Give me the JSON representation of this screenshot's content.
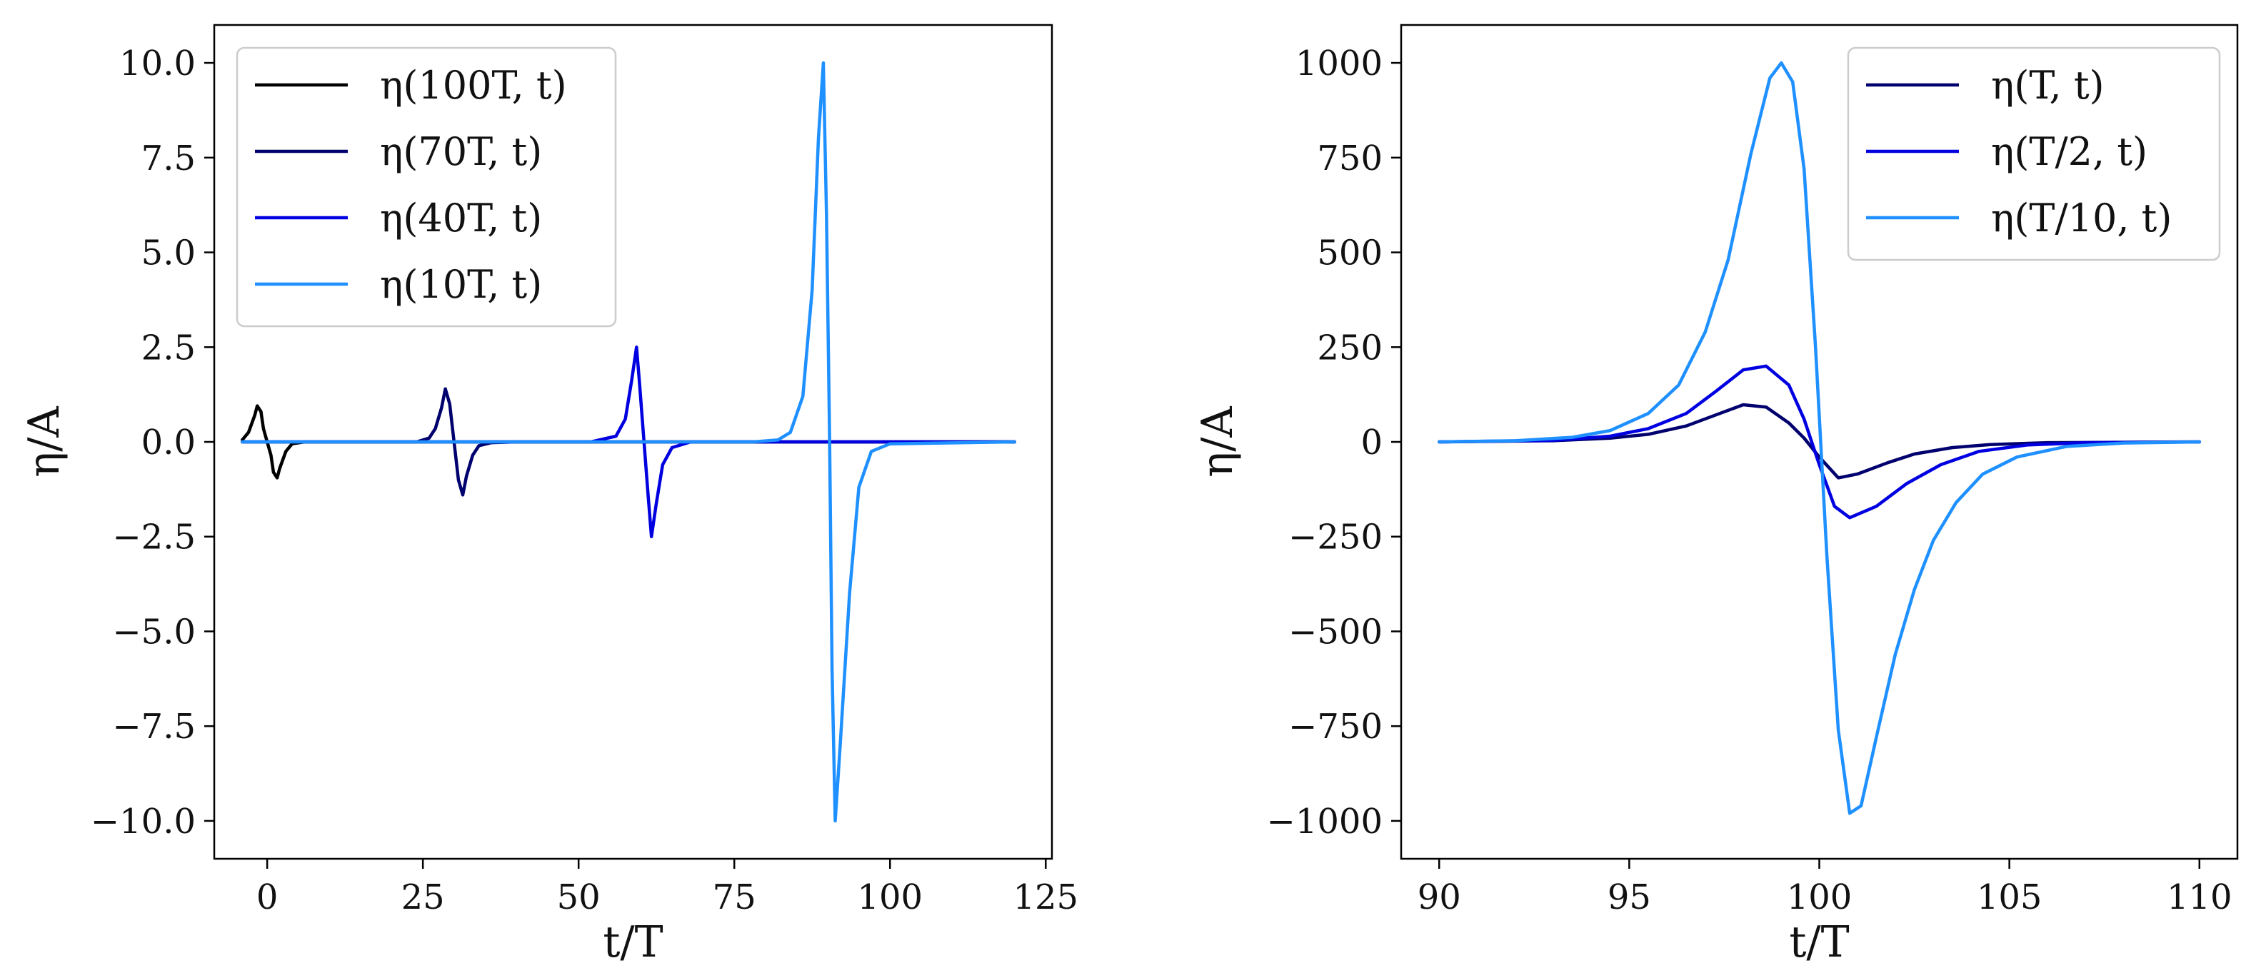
{
  "chart_data": [
    {
      "type": "line",
      "xlabel": "t/T",
      "ylabel": "η/A",
      "xlim": [
        -8.5,
        126
      ],
      "ylim": [
        -11,
        11
      ],
      "xticks": [
        0,
        25,
        50,
        75,
        100,
        125
      ],
      "xtick_labels": [
        "0",
        "25",
        "50",
        "75",
        "100",
        "125"
      ],
      "yticks": [
        -10,
        -7.5,
        -5,
        -2.5,
        0,
        2.5,
        5,
        7.5,
        10
      ],
      "ytick_labels": [
        "−10.0",
        "−7.5",
        "−5.0",
        "−2.5",
        "0.0",
        "2.5",
        "5.0",
        "7.5",
        "10.0"
      ],
      "grid": false,
      "legend_position": "top-left",
      "series": [
        {
          "name": "η(100T, t)",
          "color": "#000000",
          "x": [
            -4,
            -3,
            -2,
            -1.6,
            -1,
            -0.6,
            0,
            0.6,
            1,
            1.6,
            2,
            3,
            4,
            6,
            120
          ],
          "y": [
            0.05,
            0.25,
            0.7,
            0.95,
            0.8,
            0.35,
            0,
            -0.35,
            -0.8,
            -0.95,
            -0.7,
            -0.25,
            -0.05,
            0,
            0
          ]
        },
        {
          "name": "η(70T, t)",
          "color": "#00006e",
          "x": [
            -4,
            24,
            26,
            27,
            28,
            28.6,
            29.3,
            30,
            30.7,
            31.4,
            32,
            33,
            34,
            36,
            40,
            120
          ],
          "y": [
            0,
            0,
            0.1,
            0.35,
            0.9,
            1.4,
            1.0,
            0,
            -1.0,
            -1.4,
            -0.9,
            -0.35,
            -0.1,
            -0.02,
            0,
            0
          ]
        },
        {
          "name": "η(40T, t)",
          "color": "#0000e0",
          "x": [
            -4,
            52,
            56,
            57.5,
            58.5,
            59.3,
            59.8,
            60.5,
            61.2,
            61.7,
            62.5,
            63.5,
            65,
            68,
            120
          ],
          "y": [
            0,
            0,
            0.15,
            0.6,
            1.6,
            2.5,
            1.5,
            0,
            -1.5,
            -2.5,
            -1.6,
            -0.6,
            -0.15,
            0,
            0
          ]
        },
        {
          "name": "η(10T, t)",
          "color": "#1e90ff",
          "x": [
            -4,
            78,
            82,
            84,
            86,
            87.5,
            88.5,
            89.3,
            89.8,
            90.3,
            90.7,
            91.2,
            92,
            93.5,
            95,
            97,
            100,
            120
          ],
          "y": [
            0,
            0,
            0.05,
            0.25,
            1.2,
            4.0,
            8.0,
            10.0,
            6.0,
            0,
            -6.0,
            -10.0,
            -8.0,
            -4.0,
            -1.2,
            -0.25,
            -0.05,
            0
          ]
        }
      ]
    },
    {
      "type": "line",
      "xlabel": "t/T",
      "ylabel": "η/A",
      "xlim": [
        89,
        111
      ],
      "ylim": [
        -1100,
        1100
      ],
      "xticks": [
        90,
        95,
        100,
        105,
        110
      ],
      "xtick_labels": [
        "90",
        "95",
        "100",
        "105",
        "110"
      ],
      "yticks": [
        -1000,
        -750,
        -500,
        -250,
        0,
        250,
        500,
        750,
        1000
      ],
      "ytick_labels": [
        "−1000",
        "−750",
        "−500",
        "−250",
        "0",
        "250",
        "500",
        "750",
        "1000"
      ],
      "grid": false,
      "legend_position": "top-right",
      "series": [
        {
          "name": "η(T, t)",
          "color": "#00006e",
          "x": [
            90,
            93,
            94.5,
            95.5,
            96.5,
            97.3,
            98,
            98.6,
            99.2,
            99.6,
            100,
            100.5,
            101,
            101.8,
            102.5,
            103.5,
            104.5,
            106,
            110
          ],
          "y": [
            0,
            3,
            10,
            20,
            42,
            72,
            98,
            92,
            50,
            10,
            -40,
            -95,
            -85,
            -55,
            -32,
            -15,
            -7,
            -2,
            0
          ]
        },
        {
          "name": "η(T/2, t)",
          "color": "#0000e0",
          "x": [
            90,
            93,
            94.5,
            95.5,
            96.5,
            97.3,
            98,
            98.6,
            99.2,
            99.6,
            100,
            100.4,
            100.8,
            101.5,
            102.3,
            103.2,
            104.2,
            105.5,
            107,
            110
          ],
          "y": [
            0,
            4,
            15,
            35,
            75,
            135,
            190,
            200,
            150,
            60,
            -60,
            -170,
            -200,
            -170,
            -110,
            -60,
            -25,
            -8,
            -2,
            0
          ]
        },
        {
          "name": "η(T/10, t)",
          "color": "#1e90ff",
          "x": [
            90,
            92,
            93.5,
            94.5,
            95.5,
            96.3,
            97,
            97.6,
            98.2,
            98.7,
            99,
            99.3,
            99.6,
            99.9,
            100.2,
            100.5,
            100.8,
            101.1,
            101.5,
            102,
            102.5,
            103,
            103.6,
            104.3,
            105.2,
            106.5,
            108,
            110
          ],
          "y": [
            0,
            3,
            12,
            30,
            75,
            150,
            290,
            480,
            760,
            960,
            1000,
            950,
            720,
            250,
            -300,
            -760,
            -980,
            -960,
            -780,
            -560,
            -390,
            -260,
            -160,
            -85,
            -40,
            -12,
            -3,
            0
          ]
        }
      ]
    }
  ]
}
